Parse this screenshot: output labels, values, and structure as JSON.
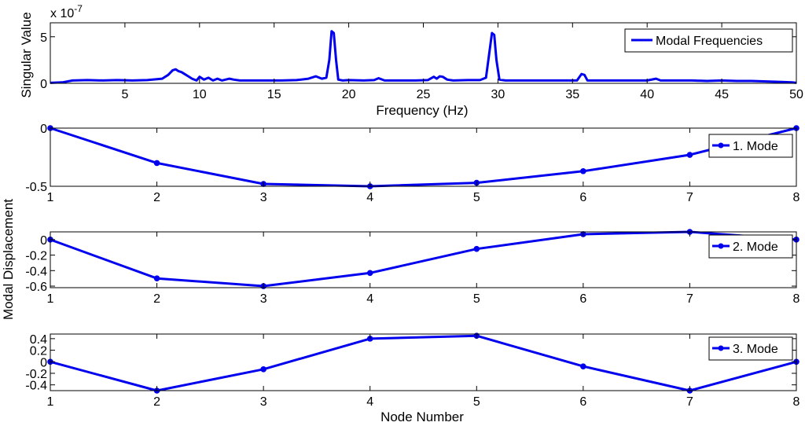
{
  "chart_data": [
    {
      "type": "line",
      "xlabel": "Frequency (Hz)",
      "ylabel": "Singular Value",
      "y_exponent_label": "x 10",
      "y_exponent_power": "-7",
      "xlim": [
        0,
        50
      ],
      "ylim": [
        0,
        6.5
      ],
      "xticks": [
        5,
        10,
        15,
        20,
        25,
        30,
        35,
        40,
        45,
        50
      ],
      "yticks": [
        0,
        5
      ],
      "legend": "top-right",
      "series": [
        {
          "name": "Modal Frequencies",
          "color": "#0000ee",
          "x": [
            0,
            0.8,
            1.5,
            2.5,
            3.5,
            4.5,
            5.5,
            6.5,
            7.5,
            7.9,
            8.2,
            8.4,
            8.6,
            8.8,
            9.0,
            9.2,
            9.5,
            9.8,
            10.0,
            10.3,
            10.6,
            10.9,
            11.2,
            11.5,
            12.0,
            12.3,
            12.7,
            13.5,
            14.5,
            15.5,
            16.5,
            17.3,
            17.8,
            18.2,
            18.5,
            18.7,
            18.85,
            19.0,
            19.15,
            19.3,
            19.6,
            20.0,
            21.0,
            21.7,
            22.0,
            22.4,
            23.5,
            24.5,
            25.3,
            25.7,
            25.9,
            26.1,
            26.3,
            26.6,
            27.0,
            28.0,
            28.8,
            29.2,
            29.4,
            29.6,
            29.75,
            29.9,
            30.1,
            30.5,
            31.5,
            33.0,
            34.5,
            35.3,
            35.6,
            35.8,
            36.0,
            36.5,
            38.0,
            40.0,
            40.6,
            40.9,
            41.3,
            42.0,
            43.0,
            44.0,
            45.0,
            46.0,
            47.0,
            48.0,
            49.0,
            49.7,
            50.0
          ],
          "values": [
            0.05,
            0.1,
            0.3,
            0.35,
            0.3,
            0.35,
            0.3,
            0.35,
            0.5,
            0.9,
            1.4,
            1.5,
            1.3,
            1.2,
            1.0,
            0.8,
            0.5,
            0.3,
            0.7,
            0.4,
            0.6,
            0.3,
            0.5,
            0.3,
            0.5,
            0.4,
            0.3,
            0.3,
            0.3,
            0.3,
            0.35,
            0.5,
            0.75,
            0.5,
            0.6,
            2.5,
            5.6,
            5.4,
            2.5,
            0.4,
            0.3,
            0.35,
            0.3,
            0.35,
            0.55,
            0.3,
            0.3,
            0.3,
            0.35,
            0.7,
            0.5,
            0.75,
            0.7,
            0.4,
            0.3,
            0.35,
            0.35,
            0.6,
            3.0,
            5.4,
            5.2,
            2.5,
            0.4,
            0.3,
            0.3,
            0.3,
            0.3,
            0.3,
            1.0,
            0.9,
            0.3,
            0.3,
            0.3,
            0.3,
            0.5,
            0.3,
            0.3,
            0.3,
            0.3,
            0.25,
            0.3,
            0.25,
            0.25,
            0.2,
            0.15,
            0.1,
            0.05
          ]
        }
      ]
    },
    {
      "type": "line",
      "xlim": [
        1,
        8
      ],
      "ylim": [
        -0.5,
        0
      ],
      "xticks": [
        1,
        2,
        3,
        4,
        5,
        6,
        7,
        8
      ],
      "ytick_labels": [
        "0",
        "-0.5"
      ],
      "yticks": [
        0,
        -0.5
      ],
      "legend": "top-right",
      "series": [
        {
          "name": "1. Mode",
          "color": "#0000ee",
          "x": [
            1,
            2,
            3,
            4,
            5,
            6,
            7,
            8
          ],
          "values": [
            0,
            -0.3,
            -0.48,
            -0.5,
            -0.47,
            -0.37,
            -0.23,
            0
          ]
        }
      ]
    },
    {
      "type": "line",
      "xlim": [
        1,
        8
      ],
      "ylim": [
        -0.62,
        0.1
      ],
      "xticks": [
        1,
        2,
        3,
        4,
        5,
        6,
        7,
        8
      ],
      "ytick_labels": [
        "0",
        "-0.2",
        "-0.4",
        "-0.6"
      ],
      "yticks": [
        0,
        -0.2,
        -0.4,
        -0.6
      ],
      "legend": "top-right",
      "series": [
        {
          "name": "2. Mode",
          "color": "#0000ee",
          "x": [
            1,
            2,
            3,
            4,
            5,
            6,
            7,
            8
          ],
          "values": [
            0,
            -0.5,
            -0.6,
            -0.43,
            -0.12,
            0.07,
            0.1,
            0
          ]
        }
      ]
    },
    {
      "type": "line",
      "xlabel": "Node Number",
      "xlim": [
        1,
        8
      ],
      "ylim": [
        -0.5,
        0.48
      ],
      "xticks": [
        1,
        2,
        3,
        4,
        5,
        6,
        7,
        8
      ],
      "ytick_labels": [
        "0.4",
        "0.2",
        "0",
        "-0.2",
        "-0.4"
      ],
      "yticks": [
        0.4,
        0.2,
        0,
        -0.2,
        -0.4
      ],
      "legend": "top-right",
      "series": [
        {
          "name": "3. Mode",
          "color": "#0000ee",
          "x": [
            1,
            2,
            3,
            4,
            5,
            6,
            7,
            8
          ],
          "values": [
            0,
            -0.5,
            -0.13,
            0.4,
            0.45,
            -0.08,
            -0.5,
            0
          ]
        }
      ]
    }
  ],
  "shared_ylabel": "Modal Displacement"
}
